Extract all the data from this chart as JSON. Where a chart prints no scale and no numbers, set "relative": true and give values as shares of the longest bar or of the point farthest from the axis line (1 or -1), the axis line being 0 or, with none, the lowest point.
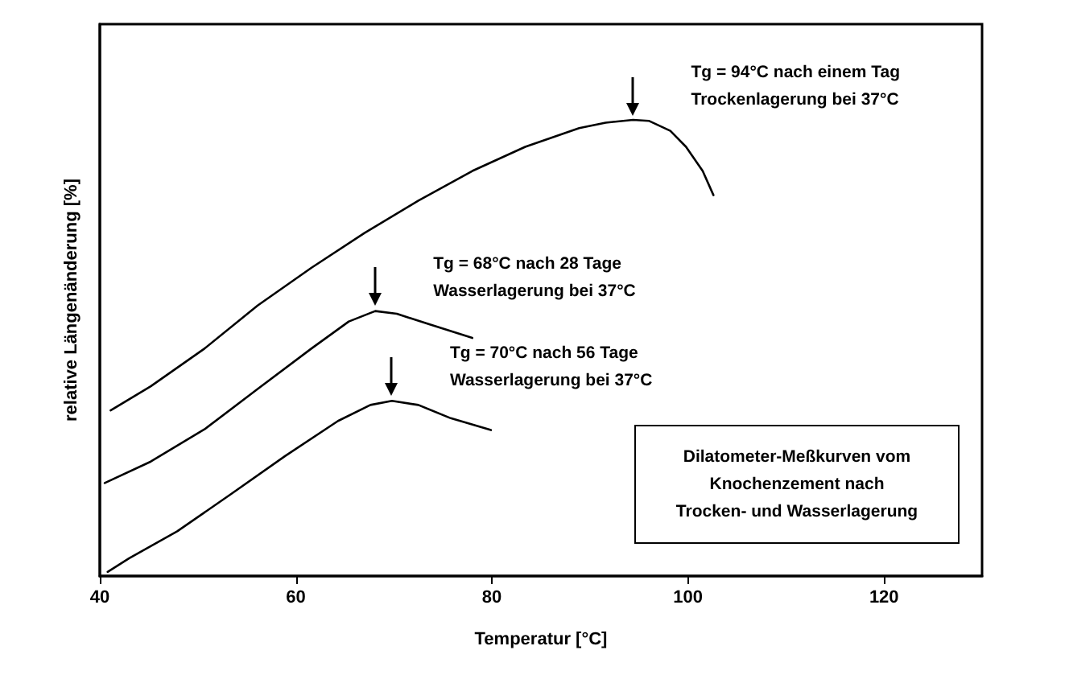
{
  "chart_data": {
    "type": "line",
    "relative": true,
    "xlabel": "Temperatur [°C]",
    "ylabel": "relative Längenänderung [%]",
    "xlim": [
      40,
      130
    ],
    "xticks": [
      40,
      60,
      80,
      100,
      120
    ],
    "marker": "none",
    "line_style": "solid",
    "series": [
      {
        "color": "#000000",
        "x": [
          41.1,
          45.2,
          50.7,
          56.1,
          61.6,
          67.0,
          72.5,
          78.0,
          83.4,
          88.9,
          91.6,
          94.4,
          96.0,
          98.2,
          99.8,
          101.5,
          102.6
        ],
        "values": [
          0.363,
          0.416,
          0.499,
          0.593,
          0.676,
          0.752,
          0.823,
          0.888,
          0.941,
          0.982,
          0.994,
          1.0,
          0.998,
          0.976,
          0.941,
          0.888,
          0.835
        ]
      },
      {
        "color": "#000000",
        "x": [
          40.5,
          45.2,
          50.7,
          56.1,
          61.6,
          65.4,
          68.1,
          70.3,
          73.6,
          78.0
        ],
        "values": [
          0.204,
          0.251,
          0.322,
          0.41,
          0.499,
          0.558,
          0.581,
          0.575,
          0.552,
          0.522
        ]
      },
      {
        "color": "#000000",
        "x": [
          40.8,
          43.0,
          47.9,
          53.4,
          58.9,
          64.3,
          67.6,
          69.8,
          72.5,
          75.8,
          79.9
        ],
        "values": [
          0.009,
          0.039,
          0.098,
          0.18,
          0.263,
          0.34,
          0.375,
          0.384,
          0.375,
          0.346,
          0.32
        ]
      }
    ],
    "annotations": [
      "Tg = 94°C nach einem Tag\nTrockenlagerung bei 37°C",
      "Tg = 68°C nach 28 Tage\nWasserlagerung bei 37°C",
      "Tg = 70°C nach 56 Tage\nWasserlagerung bei 37°C",
      "Dilatometer-Meßkurven vom\nKnochenzement nach\nTrocken- und Wasserlagerung"
    ]
  }
}
